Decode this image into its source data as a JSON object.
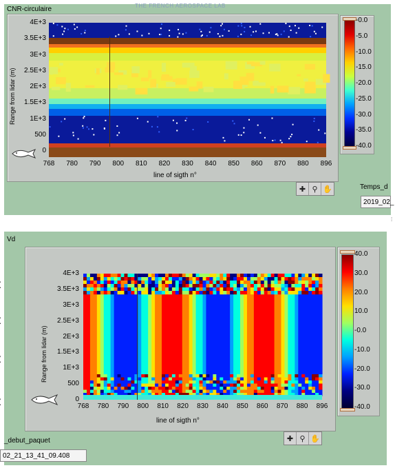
{
  "panel1": {
    "title": "CNR-circulaire",
    "watermark": "THE FRENCH AEROSPACE LAB",
    "y_ticks": [
      "4E+3",
      "3.5E+3",
      "3E+3",
      "2.5E+3",
      "2E+3",
      "1.5E+3",
      "1E+3",
      "500",
      "0"
    ],
    "x_ticks": [
      "768",
      "780",
      "790",
      "800",
      "810",
      "820",
      "830",
      "840",
      "850",
      "860",
      "870",
      "880",
      "896"
    ],
    "ylabel": "Range from lidar (m)",
    "xlabel": "line of sigth n°",
    "colorbar_ticks": [
      "-0.0",
      "-5.0",
      "-10.0",
      "-15.0",
      "-20.0",
      "-25.0",
      "-30.0",
      "-35.0",
      "-40.0"
    ],
    "side_label": "Temps_d",
    "side_value": "2019_02_"
  },
  "panel2": {
    "title": "Vd",
    "y_ticks": [
      "4E+3",
      "3.5E+3",
      "3E+3",
      "2.5E+3",
      "2E+3",
      "1.5E+3",
      "1E+3",
      "500",
      "0"
    ],
    "x_ticks": [
      "768",
      "780",
      "790",
      "800",
      "810",
      "820",
      "830",
      "840",
      "850",
      "860",
      "870",
      "880",
      "896"
    ],
    "ylabel": "Range from lidar (m)",
    "xlabel": "line of sigth n°",
    "colorbar_ticks": [
      "40.0",
      "30.0",
      "20.0",
      "10.0",
      "-0.0",
      "-10.0",
      "-20.0",
      "-30.0",
      "-40.0"
    ],
    "bottom_label": "_debut_paquet",
    "bottom_value": "02_21_13_41_09.408"
  },
  "tools": {
    "cursor": "cursor-tool-icon",
    "zoom": "zoom-tool-icon",
    "pan": "pan-hand-icon"
  },
  "colors": {
    "panel_bg": "#a3c7a8",
    "frame_bg": "#c4c8c4"
  }
}
